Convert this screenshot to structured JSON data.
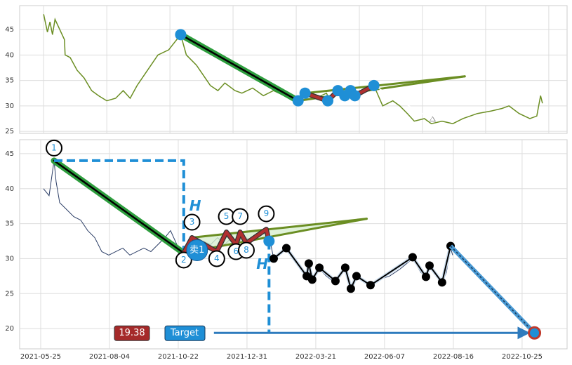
{
  "chart_data": [
    {
      "type": "line",
      "color": "#6b8e23",
      "x": [
        0,
        0.6,
        1,
        1.4,
        1.8,
        3.3,
        3.4,
        4.2,
        5.3,
        6.4,
        7.6,
        8.7,
        10,
        11.4,
        12.6,
        13.7,
        14.8,
        15.9,
        17,
        18.1,
        19.8,
        21.7,
        22.6,
        24.2,
        25.3,
        26.4,
        27.6,
        28.7,
        30.3,
        31.4,
        33.1,
        34.8,
        36.4,
        38.1,
        40.3,
        41.4,
        43.1,
        44.8,
        45.3,
        46.4,
        48.1,
        49.2,
        52.3,
        53.7,
        55.3,
        56.4,
        57.6,
        58.7,
        60.3,
        61.4,
        63.1,
        64.8,
        66.4,
        68.7,
        70.9,
        72.6,
        73.7,
        75.3,
        77,
        78.1,
        78.7,
        79
      ],
      "values": [
        48,
        44.5,
        46.5,
        44,
        47,
        43,
        40,
        39.5,
        37,
        35.5,
        33,
        32,
        31,
        31.5,
        33,
        31.5,
        34,
        36,
        38,
        40,
        41,
        44,
        40,
        38,
        36,
        34,
        33,
        34.5,
        33,
        32.5,
        33.5,
        32,
        33,
        32,
        31,
        32.5,
        31.5,
        32.5,
        31,
        33,
        32,
        32.5,
        34,
        30,
        31,
        30,
        28.5,
        27,
        27.5,
        26.5,
        27,
        26.5,
        27.5,
        28.5,
        29,
        29.5,
        30,
        28.5,
        27.5,
        28,
        32,
        30.5
      ],
      "xlim": [
        -3.8,
        82.9
      ],
      "ylim": [
        24.6,
        49.7
      ],
      "yticks": [
        25,
        30,
        35,
        40,
        45
      ],
      "xgrid": [
        0,
        10,
        20,
        30,
        40,
        50,
        60,
        70,
        80
      ],
      "grid": true,
      "leg": [
        {
          "x": 21.7,
          "y": 44
        },
        {
          "x": 40.3,
          "y": 31
        }
      ],
      "swings": [
        {
          "x": 40.3,
          "y": 31
        },
        {
          "x": 41.4,
          "y": 32.5
        },
        {
          "x": 45,
          "y": 31
        },
        {
          "x": 46.6,
          "y": 33
        },
        {
          "x": 47.7,
          "y": 32
        },
        {
          "x": 48.6,
          "y": 33
        },
        {
          "x": 49.3,
          "y": 32
        },
        {
          "x": 52.3,
          "y": 34
        }
      ],
      "apex": {
        "x": 66.7,
        "y": 35.8
      },
      "projection": {
        "x": 62,
        "y": 27
      }
    },
    {
      "type": "line",
      "color": "#2c3e66",
      "x": [
        2,
        6.1,
        9.7,
        11.2,
        13.8,
        18.9,
        24,
        29.1,
        34.2,
        39.3,
        44.4,
        49.5,
        54.6,
        59.7,
        64.8,
        69.9,
        75,
        80.1,
        85.2,
        90.3,
        94.4,
        99,
        104.1,
        108.2,
        113.3,
        118.4,
        123.5,
        128.6,
        133.7,
        138.8,
        143.9,
        149,
        154.1,
        159.2,
        164.3,
        166.8,
        169.4,
        174.5,
        178.6,
        184.7,
        192.3,
        194.9,
        197.4,
        202.6,
        207.7,
        214.3,
        221.4,
        225.5,
        229.6,
        235.7,
        239.8,
        245.9,
        253.6,
        261.2,
        270.4,
        276.5,
        280.1,
        282.7,
        286.7,
        291.8,
        294.9,
        298,
        299.5
      ],
      "values": [
        40,
        39,
        44,
        41,
        38,
        37,
        36,
        35.5,
        34,
        33,
        31,
        30.5,
        31,
        31.5,
        30.5,
        31,
        31.5,
        31,
        32,
        33,
        34,
        32,
        30.5,
        32,
        31.5,
        32.5,
        32,
        33,
        32,
        33,
        32.5,
        33,
        32.5,
        33.5,
        34,
        32.5,
        30,
        31,
        31.5,
        30,
        27.5,
        29,
        27,
        28.5,
        27.5,
        26.5,
        28.5,
        25.5,
        27.5,
        26.5,
        26,
        27,
        27.5,
        28.5,
        30,
        28,
        27.5,
        29,
        28,
        26.5,
        28,
        31.5,
        30.5
      ],
      "xlim": [
        -15.3,
        382.7
      ],
      "ylim": [
        17.1,
        47
      ],
      "yticks": [
        20,
        25,
        30,
        35,
        40,
        45
      ],
      "xticks": [
        {
          "value": 0,
          "label": "2021-05-25"
        },
        {
          "value": 50,
          "label": "2021-08-04"
        },
        {
          "value": 100,
          "label": "2021-10-22"
        },
        {
          "value": 150,
          "label": "2021-12-31"
        },
        {
          "value": 200,
          "label": "2022-03-21"
        },
        {
          "value": 250,
          "label": "2022-06-07"
        },
        {
          "value": 300,
          "label": "2022-08-16"
        },
        {
          "value": 350,
          "label": "2022-10-25"
        }
      ],
      "grid": true,
      "pivots": [
        {
          "label": "1",
          "x": 9.7,
          "y": 44
        },
        {
          "label": "2",
          "x": 104,
          "y": 30.8
        },
        {
          "label": "3",
          "x": 110,
          "y": 33
        },
        {
          "label": "4",
          "x": 128,
          "y": 31
        },
        {
          "label": "5",
          "x": 135,
          "y": 33.8
        },
        {
          "label": "6",
          "x": 142,
          "y": 32
        },
        {
          "label": "7",
          "x": 145,
          "y": 33.8
        },
        {
          "label": "8",
          "x": 149.5,
          "y": 32.2
        },
        {
          "label": "9",
          "x": 164,
          "y": 34.2
        }
      ],
      "breakout": {
        "x": 166,
        "y": 32.5
      },
      "apex": {
        "x": 237,
        "y": 35.7
      },
      "follow": [
        {
          "x": 169.4,
          "y": 30
        },
        {
          "x": 178.6,
          "y": 31.5
        },
        {
          "x": 193.4,
          "y": 27.5
        },
        {
          "x": 194.9,
          "y": 29.3
        },
        {
          "x": 197.4,
          "y": 27
        },
        {
          "x": 202.6,
          "y": 28.7
        },
        {
          "x": 214.3,
          "y": 26.8
        },
        {
          "x": 221.4,
          "y": 28.7
        },
        {
          "x": 225.5,
          "y": 25.7
        },
        {
          "x": 229.6,
          "y": 27.5
        },
        {
          "x": 239.8,
          "y": 26.2
        },
        {
          "x": 270.4,
          "y": 30.2
        },
        {
          "x": 280.1,
          "y": 27.4
        },
        {
          "x": 282.7,
          "y": 29
        },
        {
          "x": 291.8,
          "y": 26.6
        },
        {
          "x": 298,
          "y": 31.8
        }
      ],
      "target": {
        "x": 359,
        "value": 19.38
      },
      "target_label": "Target",
      "height_label": "H",
      "signal_label": "卖1"
    }
  ]
}
